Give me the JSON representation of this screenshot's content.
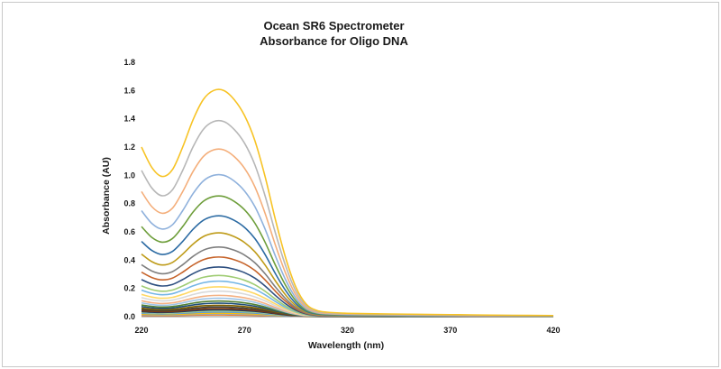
{
  "chart_data": {
    "type": "line",
    "title": "Ocean SR6 Spectrometer",
    "subtitle": "Absorbance for Oligo DNA",
    "xlabel": "Wavelength (nm)",
    "ylabel": "Absorbance (AU)",
    "xlim": [
      220,
      420
    ],
    "ylim": [
      0,
      1.8
    ],
    "xticks": [
      "220",
      "270",
      "320",
      "370",
      "420"
    ],
    "yticks": [
      "0.0",
      "0.2",
      "0.4",
      "0.6",
      "0.8",
      "1.0",
      "1.2",
      "1.4",
      "1.6",
      "1.8"
    ],
    "grid": false,
    "legend": "none",
    "curve_shape": {
      "x": [
        220,
        225,
        230,
        235,
        240,
        245,
        250,
        255,
        260,
        265,
        270,
        275,
        280,
        285,
        290,
        295,
        300,
        305,
        310,
        320,
        340,
        360,
        380,
        400,
        420
      ],
      "relative_absorbance": [
        0.75,
        0.66,
        0.62,
        0.65,
        0.75,
        0.87,
        0.96,
        1.0,
        1.0,
        0.96,
        0.89,
        0.78,
        0.62,
        0.43,
        0.26,
        0.13,
        0.055,
        0.028,
        0.02,
        0.015,
        0.012,
        0.01,
        0.008,
        0.006,
        0.005
      ]
    },
    "series": [
      {
        "peak_260nm": 1.6,
        "color": "#f7c325"
      },
      {
        "peak_260nm": 1.38,
        "color": "#b7b7b7"
      },
      {
        "peak_260nm": 1.18,
        "color": "#f4ae7a"
      },
      {
        "peak_260nm": 1.0,
        "color": "#8fb1dc"
      },
      {
        "peak_260nm": 0.85,
        "color": "#6e9e3b"
      },
      {
        "peak_260nm": 0.71,
        "color": "#2c6ba3"
      },
      {
        "peak_260nm": 0.59,
        "color": "#bf9c1a"
      },
      {
        "peak_260nm": 0.49,
        "color": "#7f7f7f"
      },
      {
        "peak_260nm": 0.42,
        "color": "#c6632a"
      },
      {
        "peak_260nm": 0.35,
        "color": "#2d4f80"
      },
      {
        "peak_260nm": 0.29,
        "color": "#9fcc73"
      },
      {
        "peak_260nm": 0.25,
        "color": "#75b6e6"
      },
      {
        "peak_260nm": 0.21,
        "color": "#ffd863"
      },
      {
        "peak_260nm": 0.18,
        "color": "#d9d9d9"
      },
      {
        "peak_260nm": 0.15,
        "color": "#f4b183"
      },
      {
        "peak_260nm": 0.13,
        "color": "#9dc3e6"
      },
      {
        "peak_260nm": 0.11,
        "color": "#548235"
      },
      {
        "peak_260nm": 0.095,
        "color": "#1f4e79"
      },
      {
        "peak_260nm": 0.08,
        "color": "#806000"
      },
      {
        "peak_260nm": 0.068,
        "color": "#404040"
      },
      {
        "peak_260nm": 0.057,
        "color": "#843c0c"
      },
      {
        "peak_260nm": 0.048,
        "color": "#203864"
      },
      {
        "peak_260nm": 0.04,
        "color": "#a9d18e"
      },
      {
        "peak_260nm": 0.032,
        "color": "#5b9bd5"
      },
      {
        "peak_260nm": 0.025,
        "color": "#ffc000"
      },
      {
        "peak_260nm": 0.018,
        "color": "#a5a5a5"
      },
      {
        "peak_260nm": 0.012,
        "color": "#ed7d31"
      }
    ]
  }
}
